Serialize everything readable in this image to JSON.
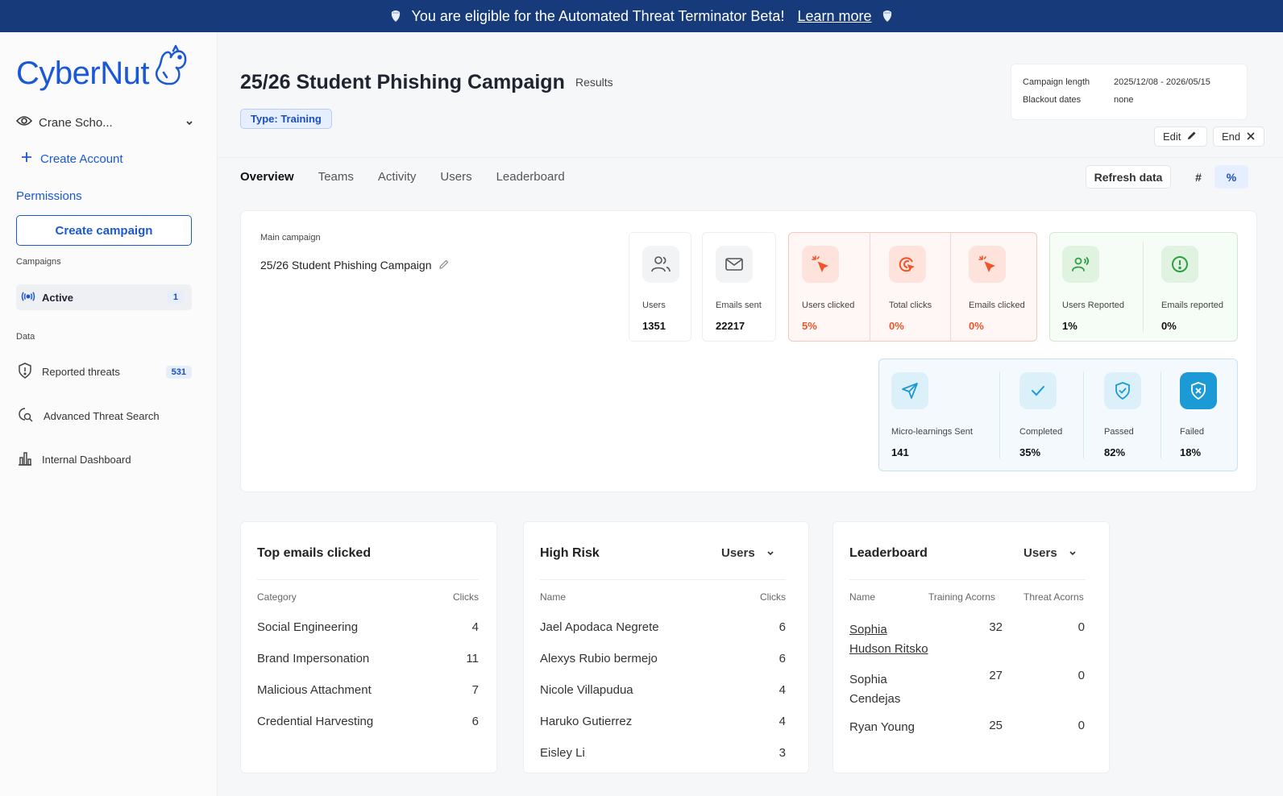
{
  "banner": {
    "text": "You are eligible for the Automated Threat Terminator Beta!",
    "link": "Learn more"
  },
  "sidebar": {
    "logo": "CyberNut",
    "org": "Crane Scho...",
    "create_account": "Create Account",
    "permissions": "Permissions",
    "create_campaign": "Create campaign",
    "campaigns_label": "Campaigns",
    "active_label": "Active",
    "active_count": "1",
    "data_label": "Data",
    "reported_threats": "Reported threats",
    "reported_threats_count": "531",
    "advanced_search": "Advanced Threat Search",
    "internal_dashboard": "Internal Dashboard"
  },
  "header": {
    "title": "25/26 Student Phishing Campaign",
    "results": "Results",
    "type_tag": "Type: Training",
    "campaign_length_label": "Campaign length",
    "campaign_length_value": "2025/12/08 - 2026/05/15",
    "blackout_label": "Blackout dates",
    "blackout_value": "none",
    "edit": "Edit",
    "end": "End"
  },
  "tabs": [
    "Overview",
    "Teams",
    "Activity",
    "Users",
    "Leaderboard"
  ],
  "toolbar": {
    "refresh": "Refresh data",
    "hash": "#",
    "pct": "%"
  },
  "main_campaign": {
    "label": "Main campaign",
    "name": "25/26 Student Phishing Campaign"
  },
  "stats": {
    "users": {
      "label": "Users",
      "value": "1351"
    },
    "emails_sent": {
      "label": "Emails sent",
      "value": "22217"
    },
    "users_clicked": {
      "label": "Users clicked",
      "value": "5%"
    },
    "total_clicks": {
      "label": "Total clicks",
      "value": "0%"
    },
    "emails_clicked": {
      "label": "Emails clicked",
      "value": "0%"
    },
    "users_reported": {
      "label": "Users Reported",
      "value": "1%"
    },
    "emails_reported": {
      "label": "Emails reported",
      "value": "0%"
    },
    "micro_sent": {
      "label": "Micro-learnings Sent",
      "value": "141"
    },
    "completed": {
      "label": "Completed",
      "value": "35%"
    },
    "passed": {
      "label": "Passed",
      "value": "82%"
    },
    "failed": {
      "label": "Failed",
      "value": "18%"
    }
  },
  "top_emails": {
    "title": "Top emails clicked",
    "col1": "Category",
    "col2": "Clicks",
    "rows": [
      {
        "name": "Social Engineering",
        "clicks": "4"
      },
      {
        "name": "Brand Impersonation",
        "clicks": "11"
      },
      {
        "name": "Malicious Attachment",
        "clicks": "7"
      },
      {
        "name": "Credential Harvesting",
        "clicks": "6"
      }
    ]
  },
  "high_risk": {
    "title": "High Risk",
    "selector": "Users",
    "col1": "Name",
    "col2": "Clicks",
    "rows": [
      {
        "name": "Jael Apodaca Negrete",
        "clicks": "6"
      },
      {
        "name": "Alexys Rubio bermejo",
        "clicks": "6"
      },
      {
        "name": "Nicole Villapudua",
        "clicks": "4"
      },
      {
        "name": "Haruko Gutierrez",
        "clicks": "4"
      },
      {
        "name": "Eisley Li",
        "clicks": "3"
      }
    ]
  },
  "leaderboard": {
    "title": "Leaderboard",
    "selector": "Users",
    "col1": "Name",
    "col2": "Training Acorns",
    "col3": "Threat Acorns",
    "rows": [
      {
        "name1": "Sophia",
        "name2": "Hudson Ritsko",
        "training": "32",
        "threat": "0"
      },
      {
        "name1": "Sophia",
        "name2": "Cendejas",
        "training": "27",
        "threat": "0"
      },
      {
        "name1": "Ryan Young",
        "name2": "",
        "training": "25",
        "threat": "0"
      }
    ]
  },
  "colors": {
    "brand": "#1a58d6",
    "banner": "#163a7a",
    "click_red": "#f0542a",
    "report_green": "#2f9e44",
    "learn_blue": "#1b9ad6"
  }
}
